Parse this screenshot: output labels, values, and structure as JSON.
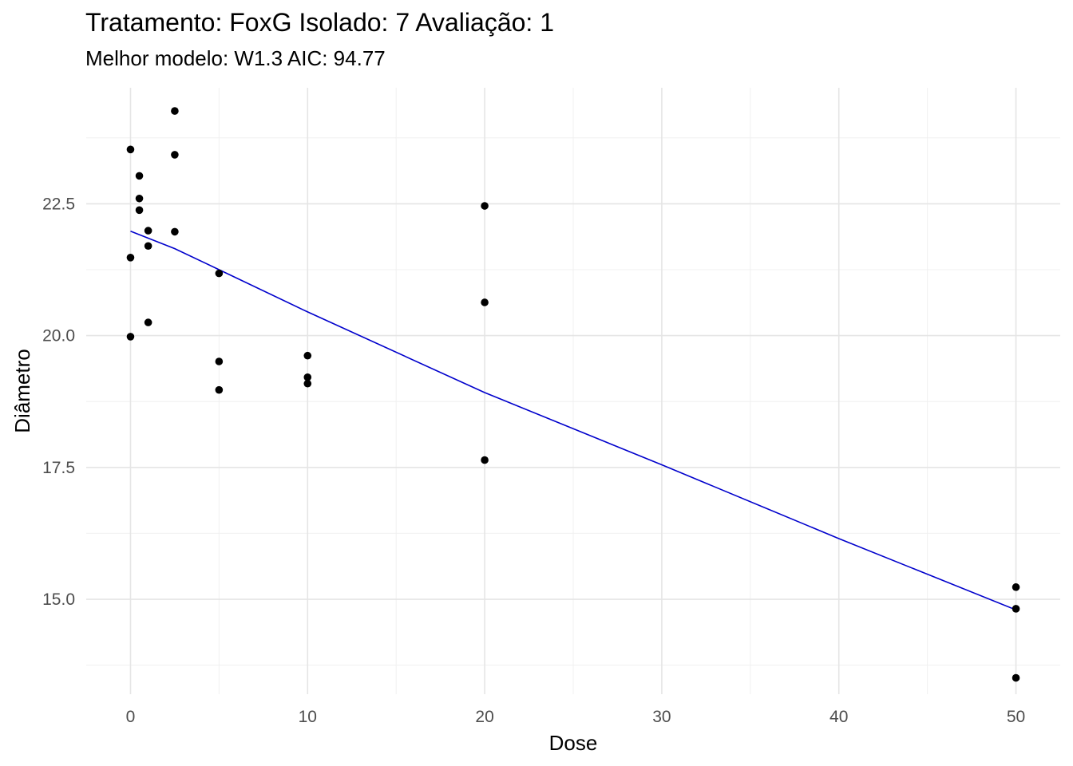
{
  "header": {
    "title": "Tratamento: FoxG Isolado: 7 Avaliação: 1",
    "subtitle": "Melhor modelo: W1.3 AIC: 94.77"
  },
  "chart_data": {
    "type": "scatter",
    "title": "Tratamento: FoxG Isolado: 7 Avaliação: 1",
    "subtitle": "Melhor modelo: W1.3 AIC: 94.77",
    "xlabel": "Dose",
    "ylabel": "Diâmetro",
    "xlim": [
      -2.5,
      52.5
    ],
    "ylim": [
      13.2,
      24.7
    ],
    "x_ticks": [
      0,
      10,
      20,
      30,
      40,
      50
    ],
    "x_tick_labels": [
      "0",
      "10",
      "20",
      "30",
      "40",
      "50"
    ],
    "y_ticks": [
      15.0,
      17.5,
      20.0,
      22.5
    ],
    "y_tick_labels": [
      "15.0",
      "17.5",
      "20.0",
      "22.5"
    ],
    "grid": true,
    "points": [
      {
        "x": 0,
        "y": 23.53
      },
      {
        "x": 0,
        "y": 21.48
      },
      {
        "x": 0,
        "y": 19.98
      },
      {
        "x": 0.5,
        "y": 23.03
      },
      {
        "x": 0.5,
        "y": 22.6
      },
      {
        "x": 0.5,
        "y": 22.38
      },
      {
        "x": 1,
        "y": 21.99
      },
      {
        "x": 1,
        "y": 21.7
      },
      {
        "x": 1,
        "y": 20.25
      },
      {
        "x": 2.5,
        "y": 24.26
      },
      {
        "x": 2.5,
        "y": 23.43
      },
      {
        "x": 2.5,
        "y": 21.97
      },
      {
        "x": 5,
        "y": 21.18
      },
      {
        "x": 5,
        "y": 19.51
      },
      {
        "x": 5,
        "y": 18.97
      },
      {
        "x": 10,
        "y": 19.62
      },
      {
        "x": 10,
        "y": 19.21
      },
      {
        "x": 10,
        "y": 19.09
      },
      {
        "x": 20,
        "y": 22.46
      },
      {
        "x": 20,
        "y": 20.63
      },
      {
        "x": 20,
        "y": 17.64
      },
      {
        "x": 50,
        "y": 15.23
      },
      {
        "x": 50,
        "y": 14.82
      },
      {
        "x": 50,
        "y": 13.51
      }
    ],
    "fit_line": {
      "color": "#0000cc",
      "x": [
        0,
        2.5,
        5,
        10,
        20,
        30,
        40,
        50
      ],
      "y": [
        21.98,
        21.65,
        21.25,
        20.45,
        18.92,
        17.55,
        16.15,
        14.8
      ]
    },
    "point_color": "#000000"
  }
}
